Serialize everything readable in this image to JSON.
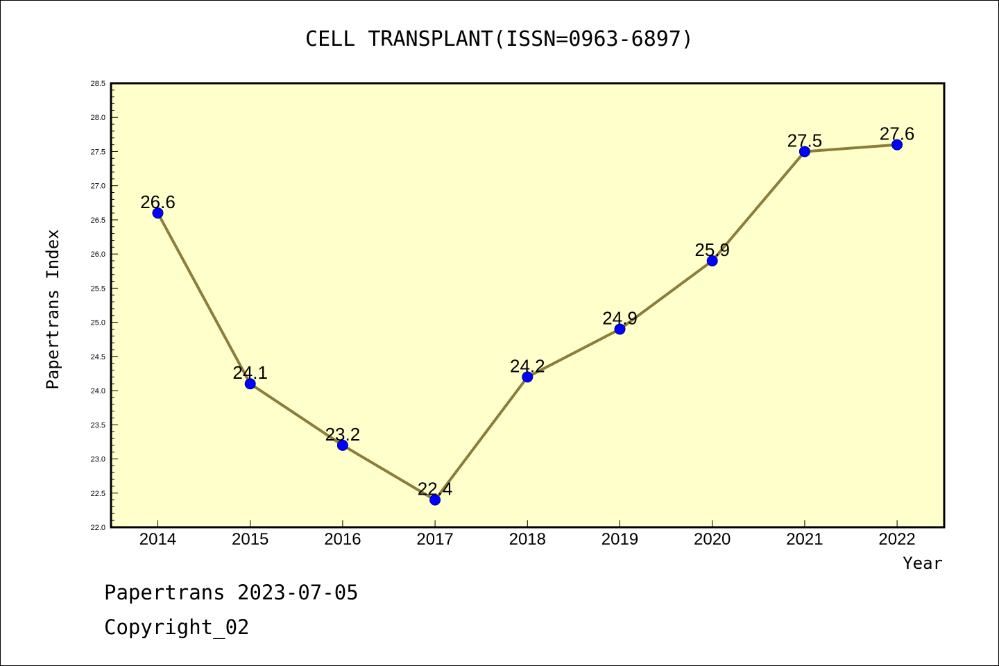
{
  "footer": {
    "line1": "Papertrans 2023-07-05",
    "line2": "Copyright_02"
  },
  "chart_data": {
    "type": "line",
    "title": "CELL TRANSPLANT(ISSN=0963-6897)",
    "xlabel": "Year",
    "ylabel": "Papertrans Index",
    "categories": [
      "2014",
      "2015",
      "2016",
      "2017",
      "2018",
      "2019",
      "2020",
      "2021",
      "2022"
    ],
    "series": [
      {
        "values": [
          26.6,
          24.1,
          23.2,
          22.4,
          24.2,
          24.9,
          25.9,
          27.5,
          27.6
        ],
        "data_labels": [
          "26.6",
          "24.1",
          "23.2",
          "22.4",
          "24.2",
          "24.9",
          "25.9",
          "27.5",
          "27.6"
        ]
      }
    ],
    "ylim": [
      22.0,
      28.5
    ],
    "yticks": [
      "22.0",
      "22.5",
      "23.0",
      "23.5",
      "24.0",
      "24.5",
      "25.0",
      "25.5",
      "26.0",
      "26.5",
      "27.0",
      "27.5",
      "28.0",
      "28.5"
    ],
    "colors": {
      "plot_bg": "#ffffcc",
      "line": "#8b7d3a",
      "marker": "#0000ff"
    },
    "grid": false
  }
}
